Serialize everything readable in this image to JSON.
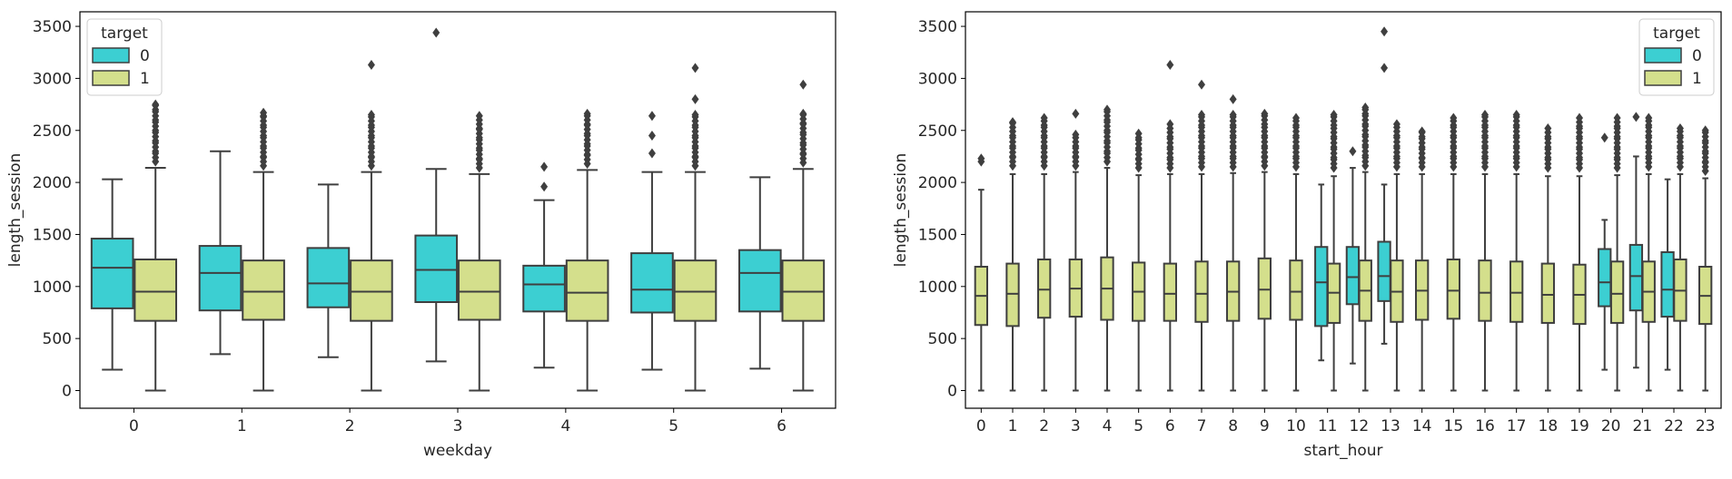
{
  "chart_data": [
    {
      "type": "boxplot",
      "xlabel": "weekday",
      "ylabel": "length_session",
      "ylim": [
        -170,
        3640
      ],
      "yticks": [
        0,
        500,
        1000,
        1500,
        2000,
        2500,
        3000,
        3500
      ],
      "categories": [
        "0",
        "1",
        "2",
        "3",
        "4",
        "5",
        "6"
      ],
      "legend": {
        "title": "target",
        "position": "top-left",
        "entries": [
          "0",
          "1"
        ]
      },
      "colors": {
        "0": "#3ccfd2",
        "1": "#d4df8c"
      },
      "series": [
        {
          "name": "0",
          "boxes": [
            {
              "whislo": 200,
              "q1": 790,
              "med": 1180,
              "q3": 1460,
              "whishi": 2030,
              "fliers": []
            },
            {
              "whislo": 350,
              "q1": 770,
              "med": 1130,
              "q3": 1390,
              "whishi": 2300,
              "fliers": []
            },
            {
              "whislo": 320,
              "q1": 800,
              "med": 1030,
              "q3": 1370,
              "whishi": 1980,
              "fliers": []
            },
            {
              "whislo": 280,
              "q1": 850,
              "med": 1160,
              "q3": 1490,
              "whishi": 2130,
              "fliers": [
                3440
              ]
            },
            {
              "whislo": 220,
              "q1": 760,
              "med": 1020,
              "q3": 1200,
              "whishi": 1830,
              "fliers": [
                1960,
                2150
              ]
            },
            {
              "whislo": 200,
              "q1": 750,
              "med": 970,
              "q3": 1320,
              "whishi": 2100,
              "fliers": [
                2280,
                2450,
                2640
              ]
            },
            {
              "whislo": 210,
              "q1": 760,
              "med": 1130,
              "q3": 1350,
              "whishi": 2050,
              "fliers": []
            }
          ]
        },
        {
          "name": "1",
          "boxes": [
            {
              "whislo": 0,
              "q1": 670,
              "med": 950,
              "q3": 1260,
              "whishi": 2140,
              "fliers": [
                2200,
                2300,
                2400,
                2500,
                2600,
                2700,
                2750
              ]
            },
            {
              "whislo": 0,
              "q1": 680,
              "med": 950,
              "q3": 1250,
              "whishi": 2100,
              "fliers": [
                2160,
                2250,
                2350,
                2450,
                2550,
                2640,
                2670
              ]
            },
            {
              "whislo": 0,
              "q1": 670,
              "med": 950,
              "q3": 1250,
              "whishi": 2100,
              "fliers": [
                2160,
                2250,
                2350,
                2450,
                2550,
                2650,
                3130
              ]
            },
            {
              "whislo": 0,
              "q1": 680,
              "med": 950,
              "q3": 1250,
              "whishi": 2080,
              "fliers": [
                2140,
                2230,
                2330,
                2430,
                2520,
                2600,
                2640
              ]
            },
            {
              "whislo": 0,
              "q1": 670,
              "med": 940,
              "q3": 1250,
              "whishi": 2120,
              "fliers": [
                2180,
                2270,
                2370,
                2470,
                2560,
                2640,
                2660
              ]
            },
            {
              "whislo": 0,
              "q1": 670,
              "med": 950,
              "q3": 1250,
              "whishi": 2100,
              "fliers": [
                2160,
                2250,
                2350,
                2450,
                2550,
                2650,
                2800,
                3100
              ]
            },
            {
              "whislo": 0,
              "q1": 670,
              "med": 950,
              "q3": 1250,
              "whishi": 2130,
              "fliers": [
                2190,
                2280,
                2380,
                2480,
                2570,
                2660,
                2940
              ]
            }
          ]
        }
      ]
    },
    {
      "type": "boxplot",
      "xlabel": "start_hour",
      "ylabel": "length_session",
      "ylim": [
        -170,
        3640
      ],
      "yticks": [
        0,
        500,
        1000,
        1500,
        2000,
        2500,
        3000,
        3500
      ],
      "categories": [
        "0",
        "1",
        "2",
        "3",
        "4",
        "5",
        "6",
        "7",
        "8",
        "9",
        "10",
        "11",
        "12",
        "13",
        "14",
        "15",
        "16",
        "17",
        "18",
        "19",
        "20",
        "21",
        "22",
        "23"
      ],
      "legend": {
        "title": "target",
        "position": "top-right",
        "entries": [
          "0",
          "1"
        ]
      },
      "colors": {
        "0": "#3ccfd2",
        "1": "#d4df8c"
      },
      "series": [
        {
          "name": "0",
          "boxes": [
            null,
            null,
            null,
            null,
            null,
            null,
            null,
            null,
            null,
            null,
            null,
            {
              "whislo": 290,
              "q1": 620,
              "med": 1040,
              "q3": 1380,
              "whishi": 1980,
              "fliers": []
            },
            {
              "whislo": 260,
              "q1": 830,
              "med": 1090,
              "q3": 1380,
              "whishi": 2140,
              "fliers": [
                2300
              ]
            },
            {
              "whislo": 450,
              "q1": 860,
              "med": 1100,
              "q3": 1430,
              "whishi": 1980,
              "fliers": [
                3100,
                3450
              ]
            },
            null,
            null,
            null,
            null,
            null,
            null,
            {
              "whislo": 200,
              "q1": 810,
              "med": 1040,
              "q3": 1360,
              "whishi": 1640,
              "fliers": [
                2430
              ]
            },
            {
              "whislo": 220,
              "q1": 770,
              "med": 1100,
              "q3": 1400,
              "whishi": 2250,
              "fliers": [
                2630
              ]
            },
            {
              "whislo": 200,
              "q1": 710,
              "med": 970,
              "q3": 1330,
              "whishi": 2030,
              "fliers": []
            },
            null
          ]
        },
        {
          "name": "1",
          "boxes": [
            {
              "whislo": 0,
              "q1": 630,
              "med": 910,
              "q3": 1190,
              "whishi": 1930,
              "fliers": [
                2200,
                2230
              ]
            },
            {
              "whislo": 0,
              "q1": 620,
              "med": 930,
              "q3": 1220,
              "whishi": 2080,
              "fliers": [
                2160,
                2250,
                2350,
                2450,
                2580
              ]
            },
            {
              "whislo": 0,
              "q1": 700,
              "med": 970,
              "q3": 1260,
              "whishi": 2080,
              "fliers": [
                2160,
                2250,
                2350,
                2450,
                2550,
                2620
              ]
            },
            {
              "whislo": 0,
              "q1": 710,
              "med": 980,
              "q3": 1260,
              "whishi": 2100,
              "fliers": [
                2160,
                2250,
                2350,
                2460,
                2660
              ]
            },
            {
              "whislo": 0,
              "q1": 680,
              "med": 980,
              "q3": 1280,
              "whishi": 2140,
              "fliers": [
                2200,
                2300,
                2400,
                2500,
                2600,
                2700
              ]
            },
            {
              "whislo": 0,
              "q1": 670,
              "med": 950,
              "q3": 1230,
              "whishi": 2070,
              "fliers": [
                2140,
                2230,
                2330,
                2430,
                2470
              ]
            },
            {
              "whislo": 0,
              "q1": 670,
              "med": 930,
              "q3": 1220,
              "whishi": 2080,
              "fliers": [
                2140,
                2240,
                2340,
                2440,
                2560,
                3130
              ]
            },
            {
              "whislo": 0,
              "q1": 660,
              "med": 930,
              "q3": 1240,
              "whishi": 2080,
              "fliers": [
                2150,
                2250,
                2350,
                2450,
                2550,
                2650,
                2940
              ]
            },
            {
              "whislo": 0,
              "q1": 670,
              "med": 950,
              "q3": 1240,
              "whishi": 2090,
              "fliers": [
                2150,
                2250,
                2350,
                2450,
                2550,
                2650,
                2800
              ]
            },
            {
              "whislo": 0,
              "q1": 690,
              "med": 970,
              "q3": 1270,
              "whishi": 2100,
              "fliers": [
                2160,
                2250,
                2350,
                2450,
                2560,
                2660
              ]
            },
            {
              "whislo": 0,
              "q1": 680,
              "med": 950,
              "q3": 1250,
              "whishi": 2080,
              "fliers": [
                2150,
                2250,
                2350,
                2450,
                2550,
                2620
              ]
            },
            {
              "whislo": 0,
              "q1": 650,
              "med": 940,
              "q3": 1220,
              "whishi": 2060,
              "fliers": [
                2140,
                2240,
                2340,
                2440,
                2550,
                2650
              ]
            },
            {
              "whislo": 0,
              "q1": 670,
              "med": 960,
              "q3": 1250,
              "whishi": 2100,
              "fliers": [
                2160,
                2260,
                2360,
                2460,
                2560,
                2660,
                2720
              ]
            },
            {
              "whislo": 0,
              "q1": 660,
              "med": 950,
              "q3": 1250,
              "whishi": 2080,
              "fliers": [
                2150,
                2250,
                2350,
                2450,
                2560
              ]
            },
            {
              "whislo": 0,
              "q1": 680,
              "med": 960,
              "q3": 1250,
              "whishi": 2080,
              "fliers": [
                2150,
                2240,
                2340,
                2440,
                2490
              ]
            },
            {
              "whislo": 0,
              "q1": 690,
              "med": 960,
              "q3": 1260,
              "whishi": 2080,
              "fliers": [
                2150,
                2250,
                2350,
                2450,
                2550,
                2620
              ]
            },
            {
              "whislo": 0,
              "q1": 670,
              "med": 940,
              "q3": 1250,
              "whishi": 2080,
              "fliers": [
                2150,
                2250,
                2350,
                2450,
                2550,
                2650
              ]
            },
            {
              "whislo": 0,
              "q1": 660,
              "med": 940,
              "q3": 1240,
              "whishi": 2080,
              "fliers": [
                2150,
                2250,
                2350,
                2450,
                2550,
                2650
              ]
            },
            {
              "whislo": 0,
              "q1": 650,
              "med": 920,
              "q3": 1220,
              "whishi": 2060,
              "fliers": [
                2140,
                2240,
                2340,
                2440,
                2520
              ]
            },
            {
              "whislo": 0,
              "q1": 640,
              "med": 920,
              "q3": 1210,
              "whishi": 2060,
              "fliers": [
                2140,
                2240,
                2340,
                2440,
                2540,
                2620
              ]
            },
            {
              "whislo": 0,
              "q1": 650,
              "med": 930,
              "q3": 1240,
              "whishi": 2070,
              "fliers": [
                2140,
                2240,
                2340,
                2440,
                2540,
                2620
              ]
            },
            {
              "whislo": 0,
              "q1": 660,
              "med": 950,
              "q3": 1240,
              "whishi": 2080,
              "fliers": [
                2150,
                2250,
                2350,
                2450,
                2550,
                2620
              ]
            },
            {
              "whislo": 0,
              "q1": 670,
              "med": 960,
              "q3": 1260,
              "whishi": 2080,
              "fliers": [
                2150,
                2250,
                2350,
                2450,
                2520
              ]
            },
            {
              "whislo": 0,
              "q1": 640,
              "med": 910,
              "q3": 1190,
              "whishi": 2040,
              "fliers": [
                2110,
                2200,
                2300,
                2400,
                2500
              ]
            }
          ]
        }
      ]
    }
  ]
}
